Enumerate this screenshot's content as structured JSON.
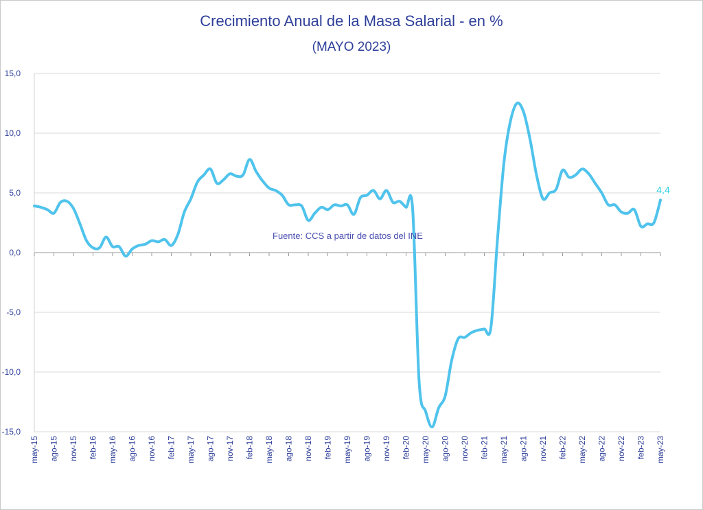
{
  "chart_data": {
    "type": "line",
    "title": "Crecimiento Anual de la Masa Salarial - en %",
    "subtitle": "(MAYO 2023)",
    "xlabel": "",
    "ylabel": "",
    "ylim": [
      -15,
      15
    ],
    "yticks": [
      "15,0",
      "10,0",
      "5,0",
      "0,0",
      "-5,0",
      "-10,0",
      "-15,0"
    ],
    "ytick_values": [
      15,
      10,
      5,
      0,
      -5,
      -10,
      -15
    ],
    "xtick_labels": [
      "may-15",
      "ago-15",
      "nov-15",
      "feb-16",
      "may-16",
      "ago-16",
      "nov-16",
      "feb-17",
      "may-17",
      "ago-17",
      "nov-17",
      "feb-18",
      "may-18",
      "ago-18",
      "nov-18",
      "feb-19",
      "may-19",
      "ago-19",
      "nov-19",
      "feb-20",
      "may-20",
      "ago-20",
      "nov-20",
      "feb-21",
      "may-21",
      "ago-21",
      "nov-21",
      "feb-22",
      "may-22",
      "ago-22",
      "nov-22",
      "feb-23",
      "may-23"
    ],
    "grid": true,
    "line_color": "#4fc3ec",
    "series": [
      {
        "values": [
          3.9,
          3.8,
          3.6,
          3.3,
          4.2,
          4.3,
          3.7,
          2.4,
          1.0,
          0.4,
          0.4,
          1.3,
          0.5,
          0.5,
          -0.3,
          0.3,
          0.6,
          0.7,
          1.0,
          0.9,
          1.1,
          0.6,
          1.5,
          3.4,
          4.5,
          5.9,
          6.5,
          7.0,
          5.8,
          6.1,
          6.6,
          6.4,
          6.5,
          7.8,
          6.8,
          6.0,
          5.4,
          5.2,
          4.8,
          4.0,
          4.0,
          3.9,
          2.7,
          3.3,
          3.8,
          3.6,
          4.0,
          3.9,
          4.0,
          3.2,
          4.6,
          4.8,
          5.2,
          4.5,
          5.2,
          4.2,
          4.3,
          3.8,
          3.7,
          -10.8,
          -13.3,
          -14.6,
          -13.0,
          -12.0,
          -9.0,
          -7.2,
          -7.1,
          -6.7,
          -6.5,
          -6.4,
          -6.3,
          1.0,
          7.5,
          11.0,
          12.5,
          11.8,
          9.5,
          6.5,
          4.5,
          5.0,
          5.3,
          6.9,
          6.3,
          6.5,
          7.0,
          6.6,
          5.8,
          5.0,
          4.0,
          4.0,
          3.4,
          3.3,
          3.6,
          2.2,
          2.4,
          2.5,
          4.4
        ]
      }
    ],
    "last_value_label": "4,4",
    "source": "Fuente: CCS a partir de datos del INE"
  }
}
